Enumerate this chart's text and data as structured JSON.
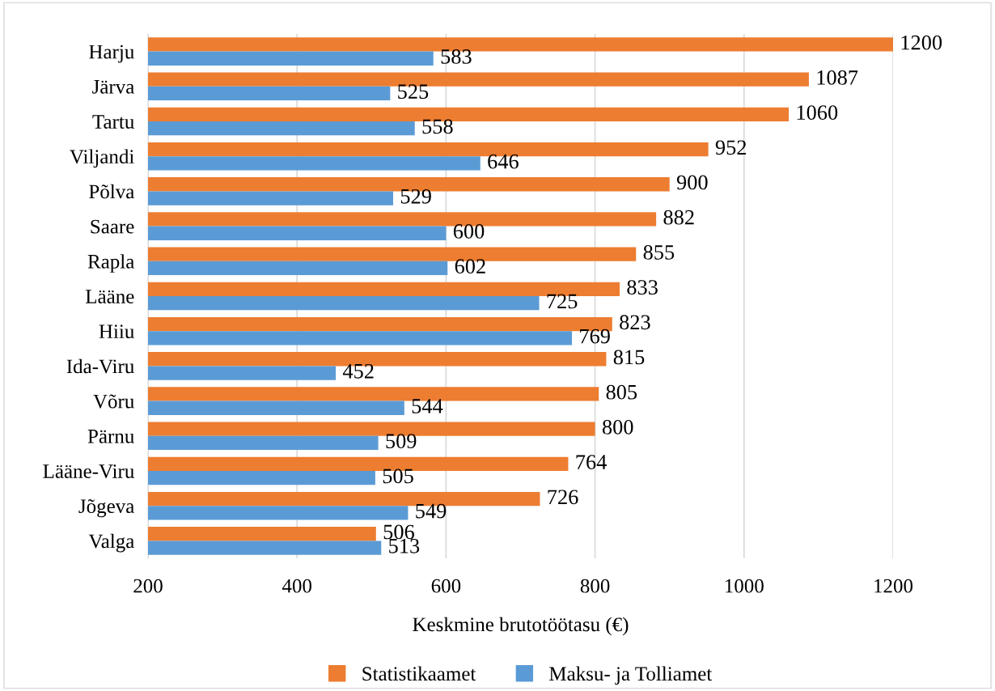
{
  "chart_data": {
    "type": "bar",
    "orientation": "horizontal",
    "xlabel": "Keskmine brutotöötasu (€)",
    "categories": [
      "Harju",
      "Järva",
      "Tartu",
      "Viljandi",
      "Põlva",
      "Saare",
      "Rapla",
      "Lääne",
      "Hiiu",
      "Ida-Viru",
      "Võru",
      "Pärnu",
      "Lääne-Viru",
      "Jõgeva",
      "Valga"
    ],
    "series": [
      {
        "name": "Statistikaamet",
        "color": "#ed7d31",
        "values": [
          1200,
          1087,
          1060,
          952,
          900,
          882,
          855,
          833,
          823,
          815,
          805,
          800,
          764,
          726,
          506
        ]
      },
      {
        "name": "Maksu- ja Tolliamet",
        "color": "#5b9bd5",
        "values": [
          583,
          525,
          558,
          646,
          529,
          600,
          602,
          725,
          769,
          452,
          544,
          509,
          505,
          549,
          513
        ]
      }
    ],
    "xlim": [
      200,
      1200
    ],
    "xticks": [
      200,
      400,
      600,
      800,
      1000,
      1200
    ],
    "grid": "x",
    "legend": "bottom",
    "data_labels": true
  }
}
